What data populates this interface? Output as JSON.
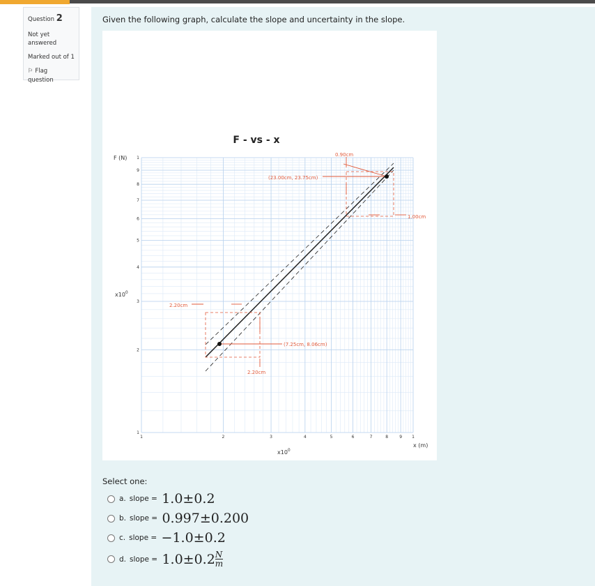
{
  "info": {
    "question_label": "Question",
    "question_number": "2",
    "status": "Not yet answered",
    "marks": "Marked out of 1",
    "flag": "Flag question"
  },
  "question_text": "Given the following graph, calculate the slope and uncertainty in the slope.",
  "graph": {
    "title": "F - vs - x",
    "ylabel": "F (N)",
    "xlabel": "x (m)",
    "multiplier": "x10",
    "exponent": "0",
    "log_scale": true,
    "xlim": [
      1,
      10
    ],
    "ylim": [
      1,
      10
    ],
    "yticks": [
      {
        "value": 10,
        "label": "1"
      },
      9,
      8,
      7,
      6,
      5,
      4,
      3,
      2,
      1
    ],
    "xticks": [
      1,
      2,
      3,
      4,
      5,
      6,
      7,
      8,
      9,
      {
        "value": 10,
        "label": "1"
      }
    ],
    "annotations": [
      "0.90cm",
      "(23.00cm, 23.75cm)",
      "1.00cm",
      "2.20cm",
      "(7.25cm, 8.06cm)",
      "2.20cm"
    ]
  },
  "select_one": "Select one:",
  "options": [
    {
      "letter": "a.",
      "prefix": "slope = ",
      "math": "1.0±0.2"
    },
    {
      "letter": "b.",
      "prefix": "slope = ",
      "math": "0.997±0.200"
    },
    {
      "letter": "c.",
      "prefix": "slope = ",
      "math": "−1.0±0.2"
    },
    {
      "letter": "d.",
      "prefix": "slope = ",
      "math": "1.0±0.2",
      "unit_num": "N",
      "unit_den": "m"
    }
  ]
}
